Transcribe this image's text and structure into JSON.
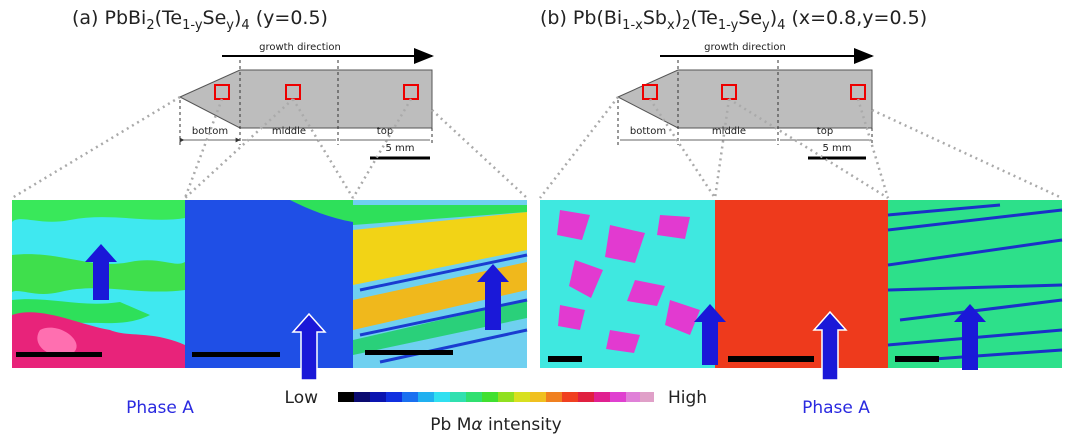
{
  "panel_a": {
    "title": [
      "(a) PbBi",
      "2",
      "(Te",
      "1-y",
      "Se",
      "y",
      ")",
      "4",
      " (y=0.5)"
    ],
    "growth_direction": "growth direction",
    "regions": [
      "bottom",
      "middle",
      "top"
    ],
    "scale": "5 mm",
    "phase_label": "Phase A"
  },
  "panel_b": {
    "title": [
      "(b) Pb(Bi",
      "1-x",
      "Sb",
      "x",
      ")",
      "2",
      "(Te",
      "1-y",
      "Se",
      "y",
      ")",
      "4",
      " (x=0.8,y=0.5)"
    ],
    "growth_direction": "growth direction",
    "regions": [
      "bottom",
      "middle",
      "top"
    ],
    "scale": "5 mm",
    "phase_label": "Phase A"
  },
  "colorbar": {
    "low": "Low",
    "high": "High",
    "label": [
      "Pb M",
      "α",
      " intensity"
    ]
  }
}
